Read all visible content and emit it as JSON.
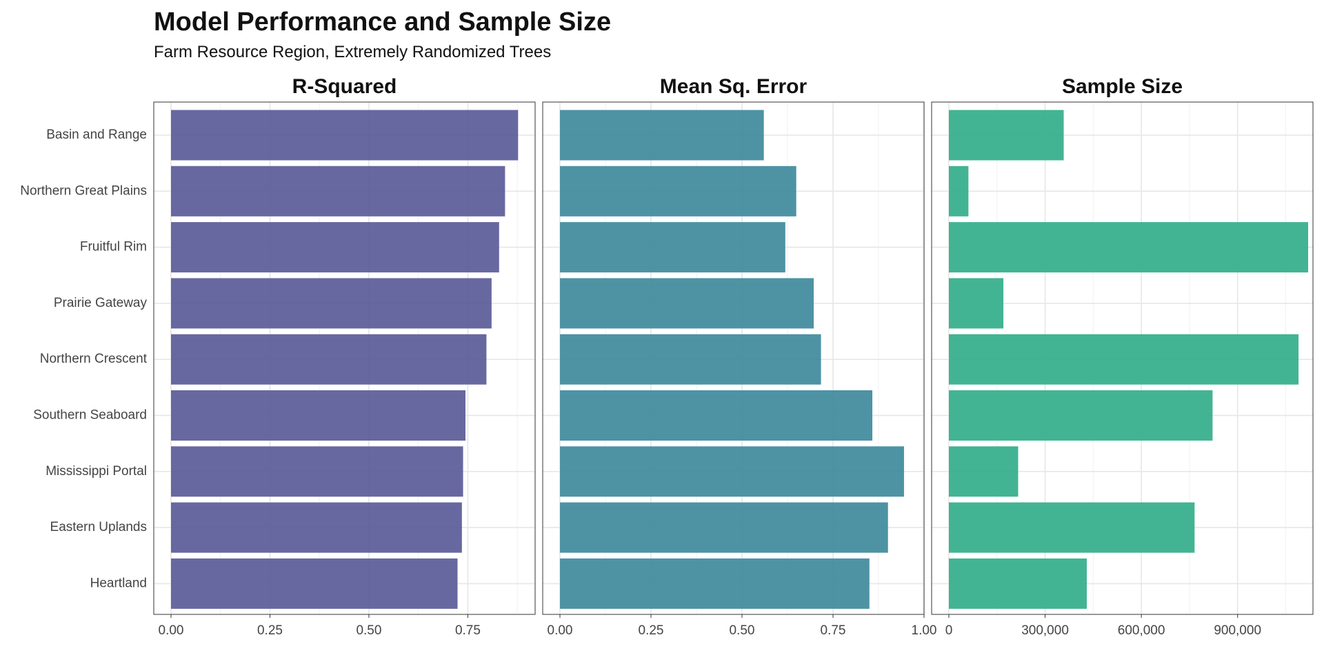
{
  "chart_data": {
    "type": "bar",
    "orientation": "horizontal",
    "title": "Model Performance and Sample Size",
    "subtitle": "Farm Resource Region, Extremely Randomized Trees",
    "categories": [
      "Basin and Range",
      "Northern Great Plains",
      "Fruitful Rim",
      "Prairie Gateway",
      "Northern Crescent",
      "Southern Seaboard",
      "Mississippi Portal",
      "Eastern Uplands",
      "Heartland"
    ],
    "panels": [
      {
        "name": "R-Squared",
        "color": "#5b5b98",
        "xlim": [
          0,
          0.92
        ],
        "ticks": [
          0,
          0.25,
          0.5,
          0.75
        ],
        "tick_labels": [
          "0.00",
          "0.25",
          "0.50",
          "0.75"
        ],
        "values": [
          0.877,
          0.844,
          0.829,
          0.81,
          0.797,
          0.744,
          0.738,
          0.735,
          0.724
        ]
      },
      {
        "name": "Mean Sq. Error",
        "color": "#3f8a9c",
        "xlim": [
          0,
          1.0
        ],
        "ticks": [
          0,
          0.25,
          0.5,
          0.75,
          1.0
        ],
        "tick_labels": [
          "0.00",
          "0.25",
          "0.50",
          "0.75",
          "1.00"
        ],
        "values": [
          0.56,
          0.649,
          0.619,
          0.697,
          0.717,
          0.858,
          0.945,
          0.901,
          0.85
        ]
      },
      {
        "name": "Sample Size",
        "color": "#33ae8a",
        "xlim": [
          0,
          1135000
        ],
        "ticks": [
          0,
          300000,
          600000,
          900000
        ],
        "tick_labels": [
          "0",
          "300,000",
          "600,000",
          "900,000"
        ],
        "values": [
          358000,
          61000,
          1120000,
          170000,
          1090000,
          822000,
          216000,
          766000,
          430000
        ]
      }
    ]
  }
}
